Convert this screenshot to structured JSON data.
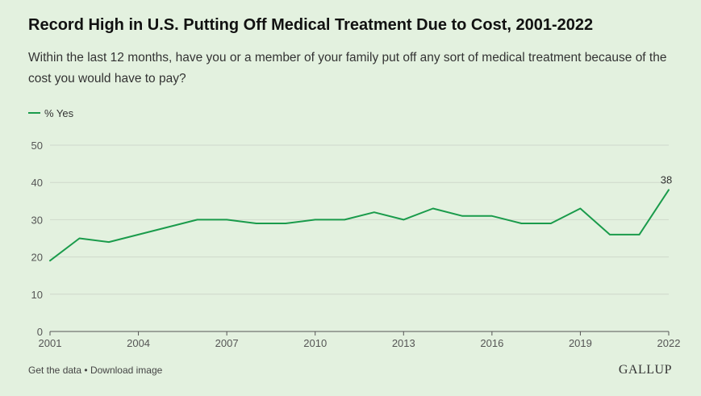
{
  "title": "Record High in U.S. Putting Off Medical Treatment Due to Cost, 2001-2022",
  "subtitle": "Within the last 12 months, have you or a member of your family put off any sort of medical treatment because of the cost you would have to pay?",
  "footer": {
    "get_data": "Get the data",
    "separator": "•",
    "download": "Download image",
    "brand": "GALLUP"
  },
  "colors": {
    "background": "#e3f1df",
    "series": "#1a9b4b",
    "grid": "#cfd8cc",
    "axis": "#555555"
  },
  "chart_data": {
    "type": "line",
    "title": "Record High in U.S. Putting Off Medical Treatment Due to Cost, 2001-2022",
    "xlabel": "",
    "ylabel": "",
    "ylim": [
      0,
      50
    ],
    "xlim": [
      2001,
      2022
    ],
    "yticks": [
      0,
      10,
      20,
      30,
      40,
      50
    ],
    "xticks": [
      2001,
      2004,
      2007,
      2010,
      2013,
      2016,
      2019,
      2022
    ],
    "grid": true,
    "legend_position": "top-left",
    "x": [
      2001,
      2002,
      2003,
      2006,
      2007,
      2008,
      2009,
      2010,
      2011,
      2012,
      2013,
      2014,
      2015,
      2016,
      2017,
      2018,
      2019,
      2020,
      2021,
      2022
    ],
    "series": [
      {
        "name": "% Yes",
        "color": "#1a9b4b",
        "values": [
          19,
          25,
          24,
          30,
          30,
          29,
          29,
          30,
          30,
          32,
          30,
          33,
          31,
          31,
          29,
          29,
          33,
          26,
          26,
          38
        ]
      }
    ],
    "annotations": [
      {
        "x": 2022,
        "y": 38,
        "text": "38"
      }
    ]
  }
}
